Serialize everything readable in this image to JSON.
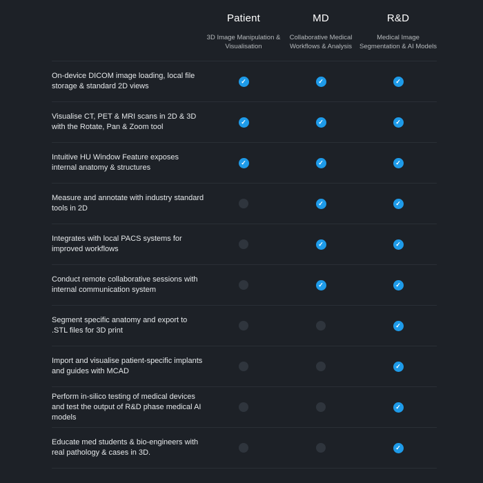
{
  "header": {
    "columns": [
      {
        "label": "Patient",
        "subtitle": "3D Image Manipulation & Visualisation"
      },
      {
        "label": "MD",
        "subtitle": "Collaborative Medical Workflows & Analysis"
      },
      {
        "label": "R&D",
        "subtitle": "Medical Image Segmentation & AI Models"
      }
    ]
  },
  "features": [
    {
      "label": "On-device DICOM image loading, local file storage & standard 2D views",
      "availability": [
        true,
        true,
        true
      ]
    },
    {
      "label": "Visualise CT, PET & MRI scans in 2D & 3D with the Rotate, Pan & Zoom tool",
      "availability": [
        true,
        true,
        true
      ]
    },
    {
      "label": "Intuitive HU Window Feature exposes internal anatomy & structures",
      "availability": [
        true,
        true,
        true
      ]
    },
    {
      "label": "Measure and annotate with industry standard tools in 2D",
      "availability": [
        false,
        true,
        true
      ]
    },
    {
      "label": "Integrates with local PACS systems for improved workflows",
      "availability": [
        false,
        true,
        true
      ]
    },
    {
      "label": "Conduct remote collaborative sessions with internal communication system",
      "availability": [
        false,
        true,
        true
      ]
    },
    {
      "label": "Segment specific anatomy and export to .STL files for 3D print",
      "availability": [
        false,
        false,
        true
      ]
    },
    {
      "label": "Import and visualise patient-specific implants and guides with MCAD",
      "availability": [
        false,
        false,
        true
      ]
    },
    {
      "label": "Perform in-silico testing of medical devices and test the output of R&D phase medical AI models",
      "availability": [
        false,
        false,
        true
      ]
    },
    {
      "label": "Educate med students & bio-engineers with real pathology & cases in 3D.",
      "availability": [
        false,
        false,
        true
      ]
    }
  ],
  "icons": {
    "check_glyph": "✓"
  },
  "colors": {
    "background": "#1d2127",
    "divider": "#2a2f36",
    "title": "#ffffff",
    "subtitle": "#b6babd",
    "text": "#e5e8ea",
    "check_bg": "#1e9be9",
    "check_fg": "#ffffff",
    "dot": "#2f353d"
  }
}
